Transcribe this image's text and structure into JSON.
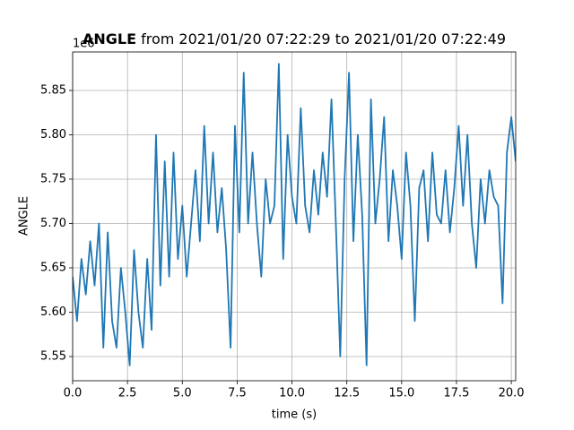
{
  "chart_data": {
    "type": "line",
    "title": {
      "bold": "ANGLE",
      "text": "from 2021/01/20 07:22:29 to 2021/01/20 07:22:49"
    },
    "x_label": "time (s)",
    "y_label": "ANGLE",
    "y_offset_label": "1e6",
    "color": "#1f77b4",
    "grid": true,
    "xlim": [
      0,
      20.2
    ],
    "ylim": [
      5.5227,
      5.8934
    ],
    "xticks": [
      {
        "value": 0,
        "label": "0.0"
      },
      2.5,
      {
        "value": 5,
        "label": "5.0"
      },
      7.5,
      {
        "value": 10,
        "label": "10.0"
      },
      12.5,
      {
        "value": 15,
        "label": "15.0"
      },
      17.5,
      {
        "value": 20,
        "label": "20.0"
      }
    ],
    "yticks": [
      5.55,
      {
        "value": 5.6,
        "label": "5.60"
      },
      5.65,
      {
        "value": 5.7,
        "label": "5.70"
      },
      5.75,
      {
        "value": 5.8,
        "label": "5.80"
      },
      5.85
    ],
    "x": [
      0,
      0.2,
      0.4,
      0.6,
      0.8,
      1,
      1.2,
      1.4,
      1.6,
      1.8,
      2,
      2.2,
      2.4,
      2.6,
      2.8,
      3,
      3.2,
      3.4,
      3.6,
      3.8,
      4,
      4.2,
      4.4,
      4.6,
      4.8,
      5,
      5.2,
      5.4,
      5.6,
      5.8,
      6,
      6.2,
      6.4,
      6.6,
      6.8,
      7,
      7.2,
      7.4,
      7.6,
      7.8,
      8,
      8.2,
      8.4,
      8.6,
      8.8,
      9,
      9.2,
      9.4,
      9.6,
      9.8,
      10,
      10.2,
      10.4,
      10.6,
      10.8,
      11,
      11.2,
      11.4,
      11.6,
      11.8,
      12,
      12.2,
      12.4,
      12.6,
      12.8,
      13,
      13.2,
      13.4,
      13.6,
      13.8,
      14,
      14.2,
      14.4,
      14.6,
      14.8,
      15,
      15.2,
      15.4,
      15.6,
      15.8,
      16,
      16.2,
      16.4,
      16.6,
      16.8,
      17,
      17.2,
      17.4,
      17.6,
      17.8,
      18,
      18.2,
      18.4,
      18.6,
      18.8,
      19,
      19.2,
      19.4,
      19.6,
      19.8,
      20,
      20.2
    ],
    "values": [
      5.64,
      5.59,
      5.66,
      5.62,
      5.68,
      5.63,
      5.7,
      5.56,
      5.69,
      5.59,
      5.56,
      5.65,
      5.6,
      5.54,
      5.67,
      5.6,
      5.56,
      5.66,
      5.58,
      5.8,
      5.63,
      5.77,
      5.64,
      5.78,
      5.66,
      5.72,
      5.64,
      5.7,
      5.76,
      5.68,
      5.81,
      5.7,
      5.78,
      5.69,
      5.74,
      5.67,
      5.56,
      5.81,
      5.69,
      5.87,
      5.7,
      5.78,
      5.7,
      5.64,
      5.75,
      5.7,
      5.72,
      5.88,
      5.66,
      5.8,
      5.73,
      5.7,
      5.83,
      5.72,
      5.69,
      5.76,
      5.71,
      5.78,
      5.73,
      5.84,
      5.7,
      5.55,
      5.75,
      5.87,
      5.68,
      5.8,
      5.71,
      5.54,
      5.84,
      5.7,
      5.75,
      5.82,
      5.68,
      5.76,
      5.72,
      5.66,
      5.78,
      5.72,
      5.59,
      5.74,
      5.76,
      5.68,
      5.78,
      5.71,
      5.7,
      5.76,
      5.69,
      5.74,
      5.81,
      5.72,
      5.8,
      5.7,
      5.65,
      5.75,
      5.7,
      5.76,
      5.73,
      5.72,
      5.61,
      5.78,
      5.82,
      5.77
    ]
  }
}
